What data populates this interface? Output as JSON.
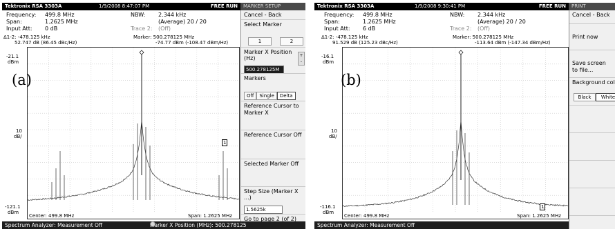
{
  "panel_a": {
    "sublabel": "(a)",
    "titlebar": {
      "brand": "Tektronix RSA 3303A",
      "datetime": "1/9/2008 8:47:07 PM",
      "run_state": "FREE RUN"
    },
    "readout": {
      "frequency_label": "Frequency:",
      "frequency_value": "499.8 MHz",
      "span_label": "Span:",
      "span_value": "1.2625 MHz",
      "input_att_label": "Input Att:",
      "input_att_value": "0 dB",
      "nbw_label": "NBW:",
      "nbw_value": "2.344 kHz",
      "average_value": "(Average)  20 / 20",
      "trace2_label": "Trace 2:",
      "trace2_value": "(Off)",
      "delta_line1": "Δ1-2: -478.125 kHz",
      "delta_line2": "52.747 dB (86.45 dBc/Hz)",
      "marker_line1": "Marker: 500.278125 MHz",
      "marker_line2": "-74.77 dBm (-108.47 dBm/Hz)"
    },
    "graph": {
      "top_level": "-21.1",
      "top_unit": "dBm",
      "scale_value": "10",
      "scale_unit": "dB/",
      "bottom_level": "-121.1",
      "bottom_unit": "dBm",
      "center": "Center: 499.8 MHz",
      "span": "Span: 1.2625 MHz",
      "marker1_label": "1"
    },
    "status": {
      "left": "Spectrum Analyzer: Measurement Off",
      "right": "Marker X Position (MHz):  500.278125"
    },
    "side": {
      "title": "MARKER SETUP",
      "cancel_back": "Cancel - Back",
      "select_marker": "Select Marker",
      "marker_1": "1",
      "marker_2": "2",
      "marker_x_position": "Marker X Position (Hz)",
      "marker_x_value": "500.278125M",
      "markers_label": "Markers",
      "markers_off": "Off",
      "markers_single": "Single",
      "markers_delta": "Delta",
      "ref_cursor_to_marker": "Reference Cursor to Marker X",
      "ref_cursor_off": "Reference Cursor Off",
      "selected_marker_off": "Selected Marker Off",
      "step_size": "Step Size (Marker X ...)",
      "step_size_value": "1.5625k",
      "go_to_page": "Go to page 2 (of 2)"
    }
  },
  "panel_b": {
    "sublabel": "(b)",
    "titlebar": {
      "brand": "Tektronix RSA 3303A",
      "datetime": "1/9/2008 9:30:41 PM",
      "run_state": "FREE RUN"
    },
    "readout": {
      "frequency_label": "Frequency:",
      "frequency_value": "499.8 MHz",
      "span_label": "Span:",
      "span_value": "1.2625 MHz",
      "input_att_label": "Input Att:",
      "input_att_value": "6 dB",
      "nbw_label": "NBW:",
      "nbw_value": "2.344 kHz",
      "average_value": "(Average)  20 / 20",
      "trace2_label": "Trace 2:",
      "trace2_value": "(Off)",
      "delta_line1": "Δ1-2: -478.125 kHz",
      "delta_line2": "91.529 dB (125.23 dBc/Hz)",
      "marker_line1": "Marker: 500.278125 MHz",
      "marker_line2": "-113.64 dBm (-147.34 dBm/Hz)"
    },
    "graph": {
      "top_level": "-16.1",
      "top_unit": "dBm",
      "scale_value": "10",
      "scale_unit": "dB/",
      "bottom_level": "-116.1",
      "bottom_unit": "dBm",
      "center": "Center: 499.8 MHz",
      "span": "Span: 1.2625 MHz",
      "marker1_label": "1"
    },
    "status": {
      "left": "Spectrum Analyzer: Measurement Off"
    },
    "side": {
      "title": "PRINT",
      "cancel_back": "Cancel - Back",
      "print_now": "Print now",
      "save_screen": "Save screen to file...",
      "background_color": "Background color",
      "bg_black": "Black",
      "bg_white": "White"
    }
  }
}
